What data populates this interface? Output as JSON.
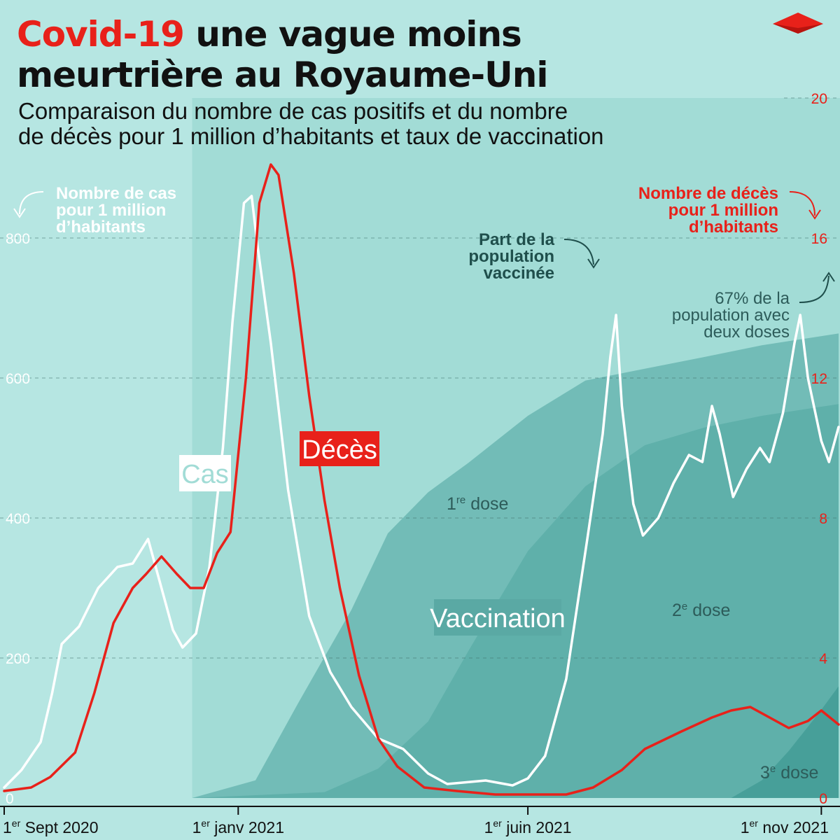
{
  "title": {
    "part1": "Covid-19",
    "part2": " une vague moins",
    "line2": "meurtrière au Royaume-Uni"
  },
  "subtitle": {
    "line1": "Comparaison du nombre de cas positifs et du nombre",
    "line2": "de décès pour 1 million d’habitants et taux de vaccination"
  },
  "colors": {
    "background": "#b6e6e2",
    "cases": "#ffffff",
    "deaths": "#e8211a",
    "band_light": "#a2dcd6",
    "dose1": "#72bcb7",
    "dose2": "#5fb0aa",
    "dose3": "#479f99",
    "vaccination_tag": "#5aa9a4",
    "dark_teal": "#1f4f4c"
  },
  "annotations": {
    "cases_axis": [
      "Nombre de cas",
      "pour 1 million",
      "d’habitants"
    ],
    "deaths_axis": [
      "Nombre de décès",
      "pour 1 million",
      "d’habitants"
    ],
    "vaccinated": [
      "Part de la",
      "population",
      "vaccinée"
    ],
    "two_doses": [
      "67% de la",
      "population avec",
      "deux doses"
    ],
    "cases_tag": "Cas",
    "deaths_tag": "Décès",
    "vaccination_tag": "Vaccination",
    "dose1_label": {
      "num": "1",
      "sup": "re",
      "text": " dose"
    },
    "dose2_label": {
      "num": "2",
      "sup": "e",
      "text": " dose"
    },
    "dose3_label": {
      "num": "3",
      "sup": "e",
      "text": " dose"
    }
  },
  "logo": "diamond-logo",
  "chart_data": {
    "type": "line",
    "title": "Covid-19 une vague moins meurtrière au Royaume-Uni",
    "x_axis": {
      "range": [
        "2020-09-01",
        "2021-11-10"
      ],
      "ticks": [
        {
          "date": "2020-09-01",
          "num": "1",
          "sup": "er",
          "text": " Sept 2020"
        },
        {
          "date": "2021-01-01",
          "num": "1",
          "sup": "er",
          "text": " janv 2021"
        },
        {
          "date": "2021-06-01",
          "num": "1",
          "sup": "er",
          "text": " juin 2021"
        },
        {
          "date": "2021-11-01",
          "num": "1",
          "sup": "er",
          "text": " nov 2021"
        }
      ]
    },
    "y_left": {
      "label": "Nombre de cas pour 1 million d’habitants",
      "range": [
        0,
        1000
      ],
      "ticks": [
        "0",
        "200",
        "400",
        "600",
        "800"
      ]
    },
    "y_right": {
      "label": "Nombre de décès pour 1 million d’habitants",
      "range": [
        0,
        20
      ],
      "ticks": [
        "0",
        "4",
        "8",
        "12",
        "16",
        "20"
      ]
    },
    "grid": "horizontal dashed",
    "series": [
      {
        "name": "Cas",
        "axis": "left",
        "points": [
          [
            "2020-09-01",
            15
          ],
          [
            "2020-09-10",
            40
          ],
          [
            "2020-09-20",
            80
          ],
          [
            "2020-09-26",
            150
          ],
          [
            "2020-10-01",
            220
          ],
          [
            "2020-10-10",
            245
          ],
          [
            "2020-10-20",
            300
          ],
          [
            "2020-10-30",
            330
          ],
          [
            "2020-11-07",
            335
          ],
          [
            "2020-11-15",
            370
          ],
          [
            "2020-11-20",
            320
          ],
          [
            "2020-11-28",
            240
          ],
          [
            "2020-12-03",
            215
          ],
          [
            "2020-12-10",
            235
          ],
          [
            "2020-12-17",
            330
          ],
          [
            "2020-12-24",
            500
          ],
          [
            "2020-12-29",
            680
          ],
          [
            "2021-01-04",
            850
          ],
          [
            "2021-01-08",
            860
          ],
          [
            "2021-01-11",
            790
          ],
          [
            "2021-01-18",
            650
          ],
          [
            "2021-01-27",
            440
          ],
          [
            "2021-02-07",
            260
          ],
          [
            "2021-02-18",
            180
          ],
          [
            "2021-03-01",
            130
          ],
          [
            "2021-03-15",
            85
          ],
          [
            "2021-03-28",
            70
          ],
          [
            "2021-04-10",
            35
          ],
          [
            "2021-04-20",
            20
          ],
          [
            "2021-05-10",
            25
          ],
          [
            "2021-05-24",
            18
          ],
          [
            "2021-06-01",
            28
          ],
          [
            "2021-06-10",
            60
          ],
          [
            "2021-06-21",
            170
          ],
          [
            "2021-07-02",
            370
          ],
          [
            "2021-07-10",
            520
          ],
          [
            "2021-07-14",
            630
          ],
          [
            "2021-07-17",
            690
          ],
          [
            "2021-07-20",
            560
          ],
          [
            "2021-07-26",
            420
          ],
          [
            "2021-07-31",
            375
          ],
          [
            "2021-08-08",
            400
          ],
          [
            "2021-08-16",
            450
          ],
          [
            "2021-08-24",
            490
          ],
          [
            "2021-08-31",
            480
          ],
          [
            "2021-09-05",
            560
          ],
          [
            "2021-09-09",
            520
          ],
          [
            "2021-09-16",
            430
          ],
          [
            "2021-09-23",
            470
          ],
          [
            "2021-09-30",
            500
          ],
          [
            "2021-10-05",
            480
          ],
          [
            "2021-10-12",
            550
          ],
          [
            "2021-10-18",
            650
          ],
          [
            "2021-10-21",
            690
          ],
          [
            "2021-10-25",
            600
          ],
          [
            "2021-11-01",
            510
          ],
          [
            "2021-11-05",
            480
          ],
          [
            "2021-11-10",
            530
          ]
        ]
      },
      {
        "name": "Décès",
        "axis": "right",
        "points": [
          [
            "2020-09-01",
            0.2
          ],
          [
            "2020-09-15",
            0.3
          ],
          [
            "2020-09-25",
            0.6
          ],
          [
            "2020-10-08",
            1.3
          ],
          [
            "2020-10-18",
            3.0
          ],
          [
            "2020-10-28",
            5.0
          ],
          [
            "2020-11-07",
            6.0
          ],
          [
            "2020-11-14",
            6.4
          ],
          [
            "2020-11-22",
            6.9
          ],
          [
            "2020-11-30",
            6.4
          ],
          [
            "2020-12-07",
            6.0
          ],
          [
            "2020-12-14",
            6.0
          ],
          [
            "2020-12-21",
            7.0
          ],
          [
            "2020-12-28",
            7.6
          ],
          [
            "2021-01-05",
            12.0
          ],
          [
            "2021-01-12",
            17.0
          ],
          [
            "2021-01-18",
            18.1
          ],
          [
            "2021-01-22",
            17.8
          ],
          [
            "2021-01-30",
            15.0
          ],
          [
            "2021-02-07",
            11.5
          ],
          [
            "2021-02-15",
            8.5
          ],
          [
            "2021-02-23",
            6.0
          ],
          [
            "2021-03-05",
            3.5
          ],
          [
            "2021-03-15",
            1.7
          ],
          [
            "2021-03-25",
            0.9
          ],
          [
            "2021-04-08",
            0.3
          ],
          [
            "2021-04-25",
            0.2
          ],
          [
            "2021-05-15",
            0.1
          ],
          [
            "2021-06-01",
            0.1
          ],
          [
            "2021-06-21",
            0.1
          ],
          [
            "2021-07-05",
            0.3
          ],
          [
            "2021-07-20",
            0.8
          ],
          [
            "2021-08-01",
            1.4
          ],
          [
            "2021-08-20",
            1.9
          ],
          [
            "2021-09-05",
            2.3
          ],
          [
            "2021-09-15",
            2.5
          ],
          [
            "2021-09-25",
            2.6
          ],
          [
            "2021-10-05",
            2.3
          ],
          [
            "2021-10-15",
            2.0
          ],
          [
            "2021-10-25",
            2.2
          ],
          [
            "2021-11-01",
            2.5
          ],
          [
            "2021-11-10",
            2.1
          ]
        ]
      },
      {
        "name": "1re dose",
        "axis": "percent",
        "points": [
          [
            "2020-12-08",
            0
          ],
          [
            "2021-01-10",
            3
          ],
          [
            "2021-02-01",
            16
          ],
          [
            "2021-02-15",
            24
          ],
          [
            "2021-03-01",
            32
          ],
          [
            "2021-03-20",
            45
          ],
          [
            "2021-04-10",
            52
          ],
          [
            "2021-05-01",
            57
          ],
          [
            "2021-06-01",
            65
          ],
          [
            "2021-07-01",
            71
          ],
          [
            "2021-08-01",
            73
          ],
          [
            "2021-09-01",
            75
          ],
          [
            "2021-10-01",
            77
          ],
          [
            "2021-11-10",
            79
          ]
        ]
      },
      {
        "name": "2e dose",
        "axis": "percent",
        "points": [
          [
            "2020-12-08",
            0
          ],
          [
            "2021-02-15",
            1
          ],
          [
            "2021-03-15",
            5
          ],
          [
            "2021-04-10",
            13
          ],
          [
            "2021-05-01",
            25
          ],
          [
            "2021-06-01",
            42
          ],
          [
            "2021-07-01",
            53
          ],
          [
            "2021-08-01",
            60
          ],
          [
            "2021-09-01",
            63
          ],
          [
            "2021-10-01",
            65
          ],
          [
            "2021-11-10",
            67
          ]
        ]
      },
      {
        "name": "3e dose",
        "axis": "percent",
        "points": [
          [
            "2021-09-15",
            0
          ],
          [
            "2021-10-01",
            3
          ],
          [
            "2021-10-15",
            8
          ],
          [
            "2021-11-01",
            15
          ],
          [
            "2021-11-10",
            19
          ]
        ]
      }
    ]
  }
}
